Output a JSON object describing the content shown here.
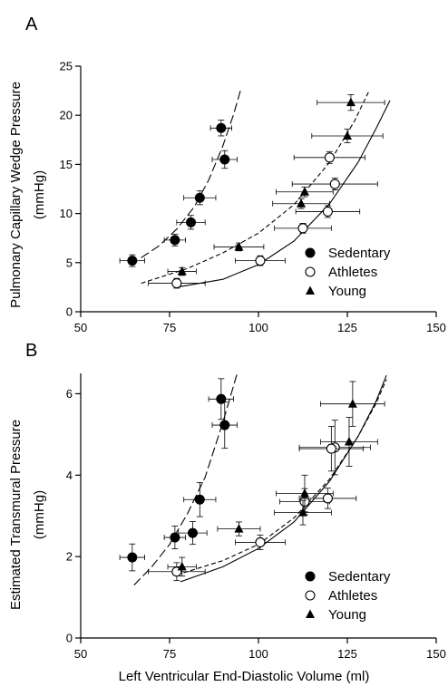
{
  "x_axis_label": "Left Ventricular End-Diastolic Volume (ml)",
  "chart_data": [
    {
      "type": "scatter",
      "panel_label": "A",
      "ylabel_line1": "Pulmonary Capillary Wedge Pressure",
      "ylabel_line2": "(mmHg)",
      "xlim": [
        50,
        150
      ],
      "ylim": [
        0,
        25
      ],
      "x_ticks": [
        50,
        75,
        100,
        125,
        150
      ],
      "y_ticks": [
        0,
        5,
        10,
        15,
        20,
        25
      ],
      "legend_position": "bottom-right",
      "series": [
        {
          "name": "Sedentary",
          "marker": "filled-circle",
          "points": [
            {
              "x": 64.5,
              "y": 5.2,
              "xerr": 3.5,
              "yerr": 0.6
            },
            {
              "x": 76.5,
              "y": 7.3,
              "xerr": 3.0,
              "yerr": 0.6
            },
            {
              "x": 81.0,
              "y": 9.1,
              "xerr": 4.0,
              "yerr": 0.7
            },
            {
              "x": 83.5,
              "y": 11.6,
              "xerr": 4.5,
              "yerr": 0.7
            },
            {
              "x": 89.5,
              "y": 18.7,
              "xerr": 3.0,
              "yerr": 0.8
            },
            {
              "x": 90.5,
              "y": 15.5,
              "xerr": 3.5,
              "yerr": 0.9
            }
          ]
        },
        {
          "name": "Athletes",
          "marker": "open-circle",
          "points": [
            {
              "x": 77.0,
              "y": 2.9,
              "xerr": 8.0,
              "yerr": 0.5
            },
            {
              "x": 100.5,
              "y": 5.2,
              "xerr": 7.0,
              "yerr": 0.5
            },
            {
              "x": 112.5,
              "y": 8.5,
              "xerr": 8.0,
              "yerr": 0.5
            },
            {
              "x": 119.5,
              "y": 10.2,
              "xerr": 9.0,
              "yerr": 0.6
            },
            {
              "x": 120.0,
              "y": 15.7,
              "xerr": 10.0,
              "yerr": 0.6
            },
            {
              "x": 121.5,
              "y": 13.0,
              "xerr": 12.0,
              "yerr": 0.6
            }
          ]
        },
        {
          "name": "Young",
          "marker": "filled-triangle",
          "points": [
            {
              "x": 78.5,
              "y": 4.1,
              "xerr": 4.0,
              "yerr": 0.4
            },
            {
              "x": 94.5,
              "y": 6.6,
              "xerr": 7.0,
              "yerr": 0.4
            },
            {
              "x": 112.0,
              "y": 11.0,
              "xerr": 8.0,
              "yerr": 0.5
            },
            {
              "x": 113.0,
              "y": 12.2,
              "xerr": 8.0,
              "yerr": 0.5
            },
            {
              "x": 125.0,
              "y": 17.9,
              "xerr": 10.0,
              "yerr": 0.7
            },
            {
              "x": 126.0,
              "y": 21.3,
              "xerr": 9.5,
              "yerr": 0.8
            }
          ]
        }
      ],
      "curves": [
        {
          "series": "Sedentary",
          "style": "long-dash",
          "points": [
            [
              67,
              5.5
            ],
            [
              72,
              6.7
            ],
            [
              77,
              8.4
            ],
            [
              82,
              10.7
            ],
            [
              86,
              13.4
            ],
            [
              90,
              16.9
            ],
            [
              93,
              20.1
            ],
            [
              95,
              22.6
            ]
          ]
        },
        {
          "series": "Athletes",
          "style": "solid",
          "points": [
            [
              77,
              2.5
            ],
            [
              90,
              3.3
            ],
            [
              100,
              4.8
            ],
            [
              110,
              7.2
            ],
            [
              120,
              11.0
            ],
            [
              128,
              15.2
            ],
            [
              133,
              18.6
            ],
            [
              137,
              21.5
            ]
          ]
        },
        {
          "series": "Young",
          "style": "short-dash",
          "points": [
            [
              67,
              2.9
            ],
            [
              80,
              4.4
            ],
            [
              90,
              6.0
            ],
            [
              100,
              8.0
            ],
            [
              110,
              10.9
            ],
            [
              120,
              15.2
            ],
            [
              127,
              19.4
            ],
            [
              131,
              22.4
            ]
          ]
        }
      ]
    },
    {
      "type": "scatter",
      "panel_label": "B",
      "ylabel_line1": "Estimated Transmural Pressure",
      "ylabel_line2": "(mmHg)",
      "xlim": [
        50,
        150
      ],
      "ylim": [
        0,
        6.5
      ],
      "x_ticks": [
        50,
        75,
        100,
        125,
        150
      ],
      "y_ticks": [
        0,
        2,
        4,
        6
      ],
      "legend_position": "bottom-right",
      "series": [
        {
          "name": "Sedentary",
          "marker": "filled-circle",
          "points": [
            {
              "x": 64.5,
              "y": 1.98,
              "xerr": 3.5,
              "yerr": 0.33
            },
            {
              "x": 76.5,
              "y": 2.47,
              "xerr": 3.0,
              "yerr": 0.28
            },
            {
              "x": 81.5,
              "y": 2.58,
              "xerr": 4.0,
              "yerr": 0.28
            },
            {
              "x": 83.5,
              "y": 3.4,
              "xerr": 4.5,
              "yerr": 0.42
            },
            {
              "x": 89.5,
              "y": 5.87,
              "xerr": 3.5,
              "yerr": 0.5
            },
            {
              "x": 90.5,
              "y": 5.23,
              "xerr": 3.5,
              "yerr": 0.57
            }
          ]
        },
        {
          "name": "Athletes",
          "marker": "open-circle",
          "points": [
            {
              "x": 77.0,
              "y": 1.63,
              "xerr": 8.0,
              "yerr": 0.22
            },
            {
              "x": 100.5,
              "y": 2.35,
              "xerr": 7.0,
              "yerr": 0.18
            },
            {
              "x": 113.0,
              "y": 3.35,
              "xerr": 7.0,
              "yerr": 0.32
            },
            {
              "x": 119.5,
              "y": 3.43,
              "xerr": 8.0,
              "yerr": 0.25
            },
            {
              "x": 121.5,
              "y": 4.68,
              "xerr": 10.0,
              "yerr": 0.67
            },
            {
              "x": 120.5,
              "y": 4.65,
              "xerr": 9.0,
              "yerr": 0.55
            }
          ]
        },
        {
          "name": "Young",
          "marker": "filled-triangle",
          "points": [
            {
              "x": 78.5,
              "y": 1.75,
              "xerr": 4.0,
              "yerr": 0.23
            },
            {
              "x": 94.5,
              "y": 2.68,
              "xerr": 6.0,
              "yerr": 0.17
            },
            {
              "x": 112.5,
              "y": 3.08,
              "xerr": 8.0,
              "yerr": 0.3
            },
            {
              "x": 113.0,
              "y": 3.55,
              "xerr": 8.0,
              "yerr": 0.45
            },
            {
              "x": 125.5,
              "y": 4.82,
              "xerr": 8.0,
              "yerr": 0.6
            },
            {
              "x": 126.5,
              "y": 5.75,
              "xerr": 9.0,
              "yerr": 0.55
            }
          ]
        }
      ],
      "curves": [
        {
          "series": "Sedentary",
          "style": "long-dash",
          "points": [
            [
              65,
              1.3
            ],
            [
              70,
              1.75
            ],
            [
              75,
              2.3
            ],
            [
              80,
              3.05
            ],
            [
              85,
              3.95
            ],
            [
              90,
              5.3
            ],
            [
              93,
              6.2
            ],
            [
              94,
              6.5
            ]
          ]
        },
        {
          "series": "Athletes",
          "style": "solid",
          "points": [
            [
              78,
              1.38
            ],
            [
              90,
              1.75
            ],
            [
              100,
              2.2
            ],
            [
              110,
              2.85
            ],
            [
              120,
              3.85
            ],
            [
              128,
              4.95
            ],
            [
              133,
              5.8
            ],
            [
              136,
              6.45
            ]
          ]
        },
        {
          "series": "Young",
          "style": "short-dash",
          "points": [
            [
              77,
              1.55
            ],
            [
              90,
              1.9
            ],
            [
              100,
              2.3
            ],
            [
              110,
              2.95
            ],
            [
              120,
              3.9
            ],
            [
              128,
              4.95
            ],
            [
              133,
              5.75
            ],
            [
              136,
              6.35
            ]
          ]
        }
      ]
    }
  ]
}
